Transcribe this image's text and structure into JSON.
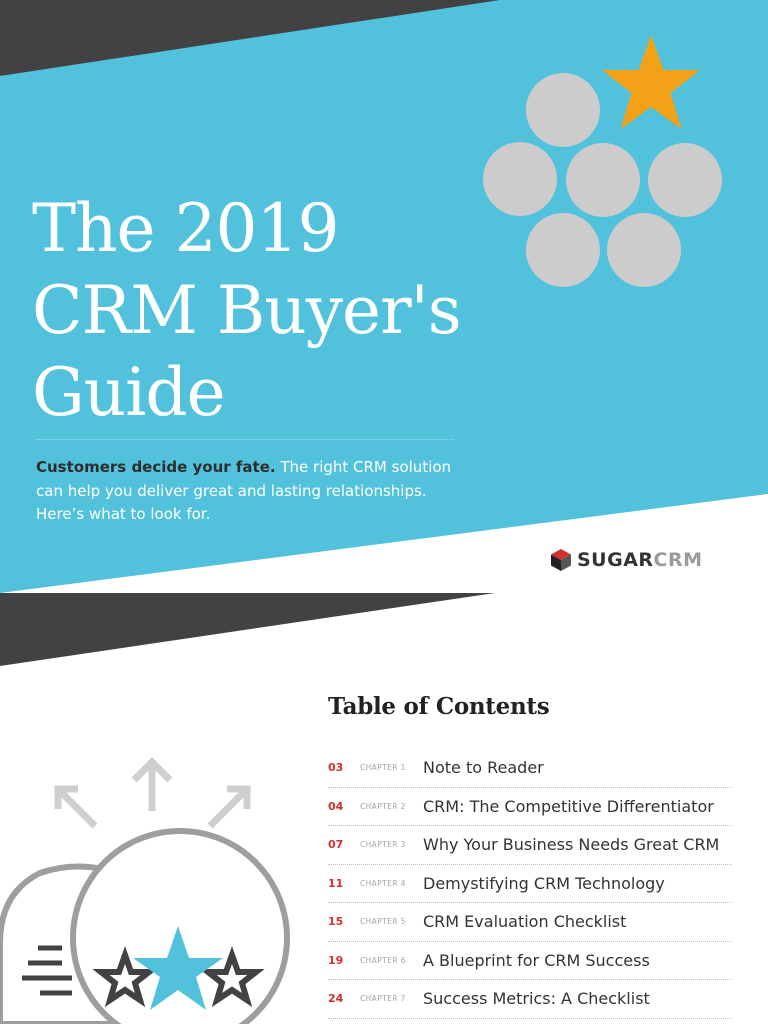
{
  "cover": {
    "title_lines": [
      "The 2019",
      "CRM Buyer's",
      "Guide"
    ],
    "intro_bold": "Customers decide your fate.",
    "intro_rest": " The right CRM solution can help you deliver great and lasting relationships. Here’s what to look for.",
    "logo": {
      "part1": "SUGAR",
      "part2": "CRM"
    },
    "colors": {
      "accent": "#52c2dc",
      "dark": "#424244",
      "star": "#f3a116",
      "circle": "#cccccc"
    },
    "icon": "star-among-circles-icon"
  },
  "toc": {
    "title": "Table of Contents",
    "rows": [
      {
        "page": "03",
        "chapter": "CHAPTER 1",
        "title": "Note to Reader"
      },
      {
        "page": "04",
        "chapter": "CHAPTER 2",
        "title": "CRM: The Competitive Differentiator"
      },
      {
        "page": "07",
        "chapter": "CHAPTER 3",
        "title": "Why Your Business Needs Great CRM"
      },
      {
        "page": "11",
        "chapter": "CHAPTER 4",
        "title": "Demystifying CRM Technology"
      },
      {
        "page": "15",
        "chapter": "CHAPTER 5",
        "title": "CRM Evaluation Checklist"
      },
      {
        "page": "19",
        "chapter": "CHAPTER 6",
        "title": "A Blueprint for CRM Success"
      },
      {
        "page": "24",
        "chapter": "CHAPTER 7",
        "title": "Success Metrics: A Checklist"
      }
    ],
    "illustration_icon": "chat-bubbles-stars-icon"
  }
}
